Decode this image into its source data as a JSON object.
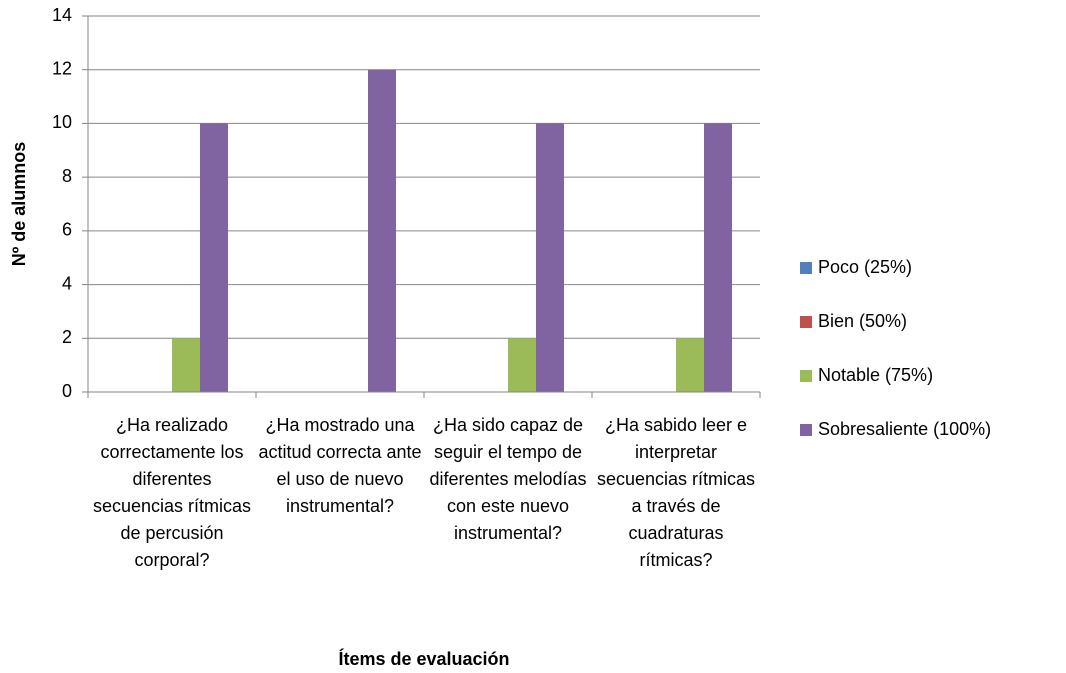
{
  "chart_data": {
    "type": "bar",
    "x_label": "Ítems de evaluación",
    "y_label": "Nº de alumnos",
    "categories": [
      "¿Ha realizado correctamente los diferentes secuencias rítmicas de percusión corporal?",
      "¿Ha mostrado una actitud correcta ante el uso de nuevo instrumental?",
      "¿Ha sido capaz de seguir el tempo de diferentes melodías con este nuevo instrumental?",
      "¿Ha sabido leer e interpretar secuencias rítmicas a través de cuadraturas rítmicas?"
    ],
    "series": [
      {
        "name": "Poco (25%)",
        "color": "#4f81bd",
        "values": [
          0,
          0,
          0,
          0
        ]
      },
      {
        "name": "Bien (50%)",
        "color": "#c0504d",
        "values": [
          0,
          0,
          0,
          0
        ]
      },
      {
        "name": "Notable (75%)",
        "color": "#9bbb59",
        "values": [
          2,
          0,
          2,
          2
        ]
      },
      {
        "name": "Sobresaliente (100%)",
        "color": "#8064a2",
        "values": [
          10,
          12,
          10,
          10
        ]
      }
    ],
    "ylim": [
      0,
      14
    ],
    "yticks": [
      0,
      2,
      4,
      6,
      8,
      10,
      12,
      14
    ],
    "grid": true,
    "legend": "right"
  }
}
